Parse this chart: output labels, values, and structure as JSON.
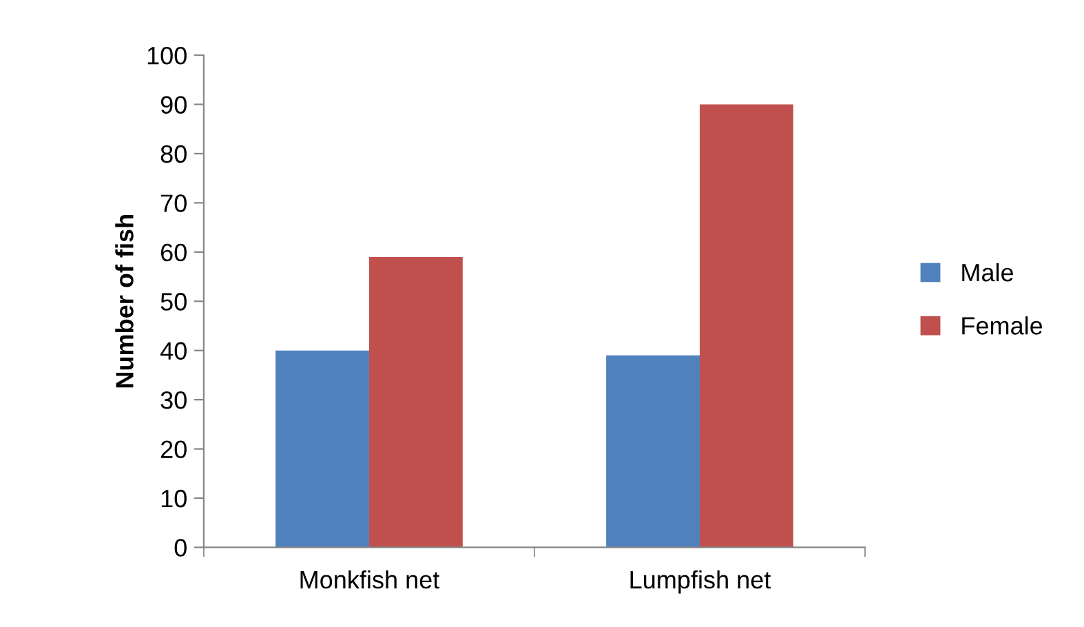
{
  "chart_data": {
    "type": "bar",
    "ylabel": "Number of fish",
    "categories": [
      "Monkfish net",
      "Lumpfish net"
    ],
    "series": [
      {
        "name": "Male",
        "color": "#4f81bd",
        "values": [
          40,
          39
        ]
      },
      {
        "name": "Female",
        "color": "#c0504d",
        "values": [
          59,
          90
        ]
      }
    ],
    "ylim": [
      0,
      100
    ],
    "yticks": [
      0,
      10,
      20,
      30,
      40,
      50,
      60,
      70,
      80,
      90,
      100
    ],
    "grid": false,
    "legend": "right"
  }
}
